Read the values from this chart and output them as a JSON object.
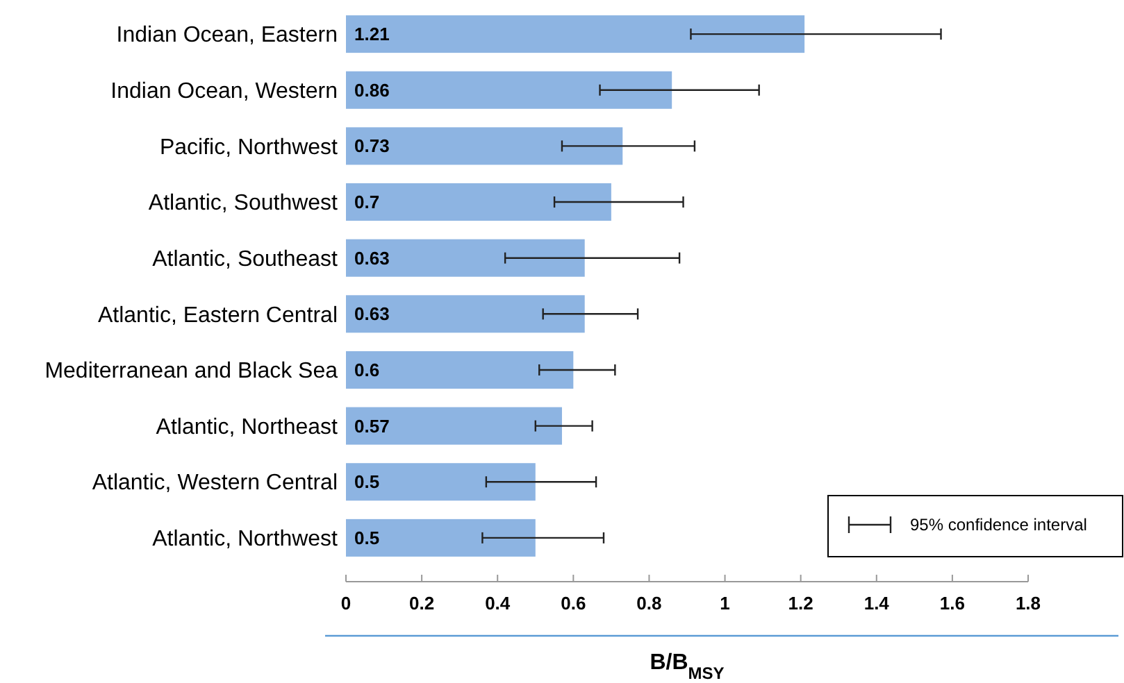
{
  "chart_data": {
    "type": "bar",
    "orientation": "horizontal",
    "categories": [
      "Indian Ocean, Eastern",
      "Indian Ocean, Western",
      "Pacific, Northwest",
      "Atlantic, Southwest",
      "Atlantic, Southeast",
      "Atlantic, Eastern Central",
      "Mediterranean and Black Sea",
      "Atlantic, Northeast",
      "Atlantic, Western Central",
      "Atlantic, Northwest"
    ],
    "values": [
      1.21,
      0.86,
      0.73,
      0.7,
      0.63,
      0.63,
      0.6,
      0.57,
      0.5,
      0.5
    ],
    "errors": [
      [
        0.91,
        1.57
      ],
      [
        0.67,
        1.09
      ],
      [
        0.57,
        0.92
      ],
      [
        0.55,
        0.89
      ],
      [
        0.42,
        0.88
      ],
      [
        0.52,
        0.77
      ],
      [
        0.51,
        0.71
      ],
      [
        0.5,
        0.65
      ],
      [
        0.37,
        0.66
      ],
      [
        0.36,
        0.68
      ]
    ],
    "color": "#8db4e2",
    "data_labels": true,
    "xlim": [
      0,
      1.8
    ],
    "xticks": [
      0,
      0.2,
      0.4,
      0.6,
      0.8,
      1,
      1.2,
      1.4,
      1.6,
      1.8
    ],
    "xlabel": "B/B$_{MSY}$",
    "grid": false,
    "annotations": [
      "95% confidence interval"
    ]
  }
}
